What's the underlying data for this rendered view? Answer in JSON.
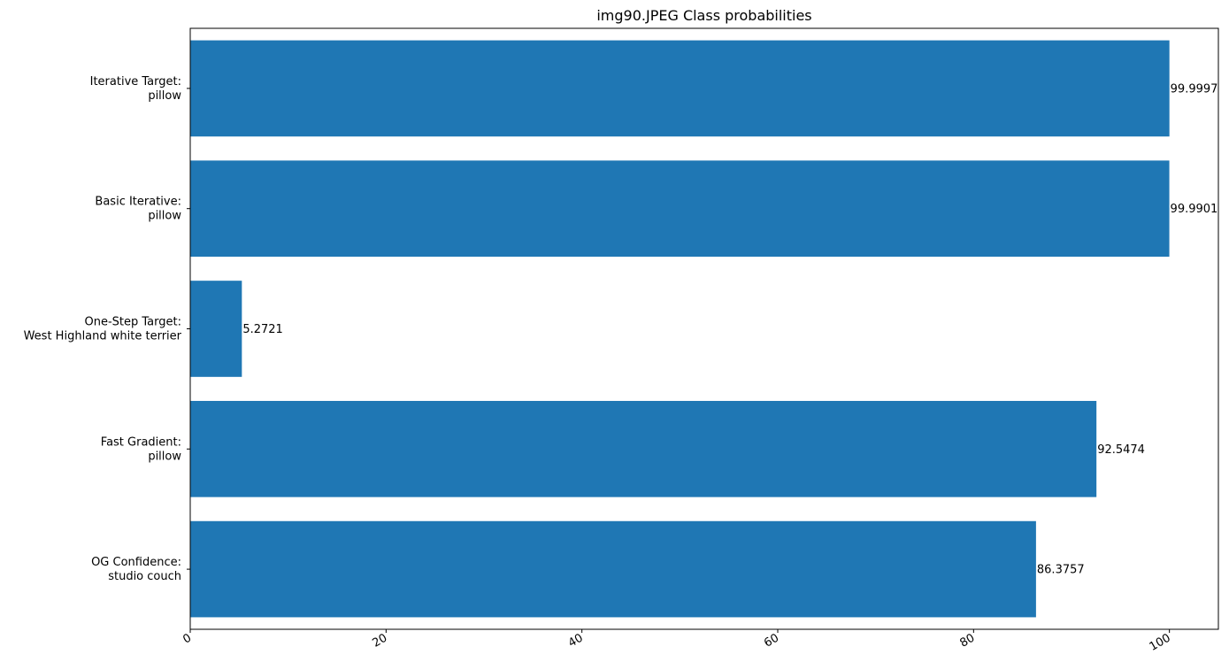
{
  "chart_data": {
    "type": "bar",
    "orientation": "horizontal",
    "title": "img90.JPEG Class probabilities",
    "xlabel": "",
    "ylabel": "",
    "xlim": [
      0,
      105
    ],
    "xticks": [
      0,
      20,
      40,
      60,
      80,
      100
    ],
    "grid": false,
    "bar_color": "#1f77b4",
    "categories": [
      [
        "OG Confidence:",
        "studio couch"
      ],
      [
        "Fast Gradient:",
        "pillow"
      ],
      [
        "One-Step Target:",
        "West Highland white terrier"
      ],
      [
        "Basic Iterative:",
        "pillow"
      ],
      [
        "Iterative Target:",
        "pillow"
      ]
    ],
    "values": [
      86.3757,
      92.5474,
      5.2721,
      99.9901,
      99.9997
    ],
    "value_labels": [
      "86.3757",
      "92.5474",
      "5.2721",
      "99.9901",
      "99.9997"
    ]
  }
}
